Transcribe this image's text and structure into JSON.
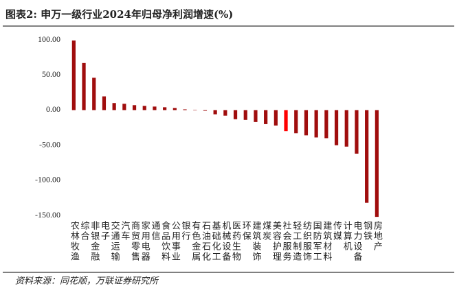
{
  "chart_data": {
    "type": "bar",
    "title": "图表2:  申万一级行业2024年归母净利润增速(%)",
    "source": "资料来源：同花顺，万联证券研究所",
    "categories": [
      "农林牧渔",
      "综合",
      "非银金融",
      "电子",
      "交通运输",
      "汽车",
      "商贸零售",
      "家用电器",
      "通信",
      "食品饮料",
      "公用事业",
      "银行",
      "有色金属",
      "石油石化",
      "基础化工",
      "机械设备",
      "医药生物",
      "环保",
      "建筑装饰",
      "煤炭",
      "美容护理",
      "社会服务",
      "轻工制造",
      "纺织服饰",
      "国防军工",
      "建筑材料",
      "传媒",
      "计算机",
      "电力设备",
      "钢铁",
      "房地产"
    ],
    "values": [
      99,
      67,
      46,
      19.5,
      10,
      9,
      7,
      6,
      5,
      4,
      3,
      1,
      0.5,
      -1,
      -6,
      -8,
      -13,
      -14,
      -17,
      -20,
      -22,
      -30,
      -33,
      -36,
      -39,
      -40,
      -50,
      -52,
      -62,
      -132,
      -152
    ],
    "colors": [
      "#a00d0d",
      "#a00d0d",
      "#a00d0d",
      "#a00d0d",
      "#a00d0d",
      "#a00d0d",
      "#a00d0d",
      "#a00d0d",
      "#a00d0d",
      "#a00d0d",
      "#a00d0d",
      "#a00d0d",
      "#a00d0d",
      "#a00d0d",
      "#a00d0d",
      "#a00d0d",
      "#a00d0d",
      "#a00d0d",
      "#a00d0d",
      "#a00d0d",
      "#a00d0d",
      "#ff0000",
      "#a00d0d",
      "#a00d0d",
      "#a00d0d",
      "#a00d0d",
      "#a00d0d",
      "#a00d0d",
      "#a00d0d",
      "#a00d0d",
      "#a00d0d"
    ],
    "ylim": [
      -155,
      102
    ],
    "yticks": [
      {
        "value": 100,
        "label": "100.00"
      },
      {
        "value": 50,
        "label": "50.00"
      },
      {
        "value": 0,
        "label": "0.00"
      },
      {
        "value": -50,
        "label": "-50.00"
      },
      {
        "value": -100,
        "label": "-100.00"
      },
      {
        "value": -150,
        "label": "-150.00"
      }
    ]
  }
}
